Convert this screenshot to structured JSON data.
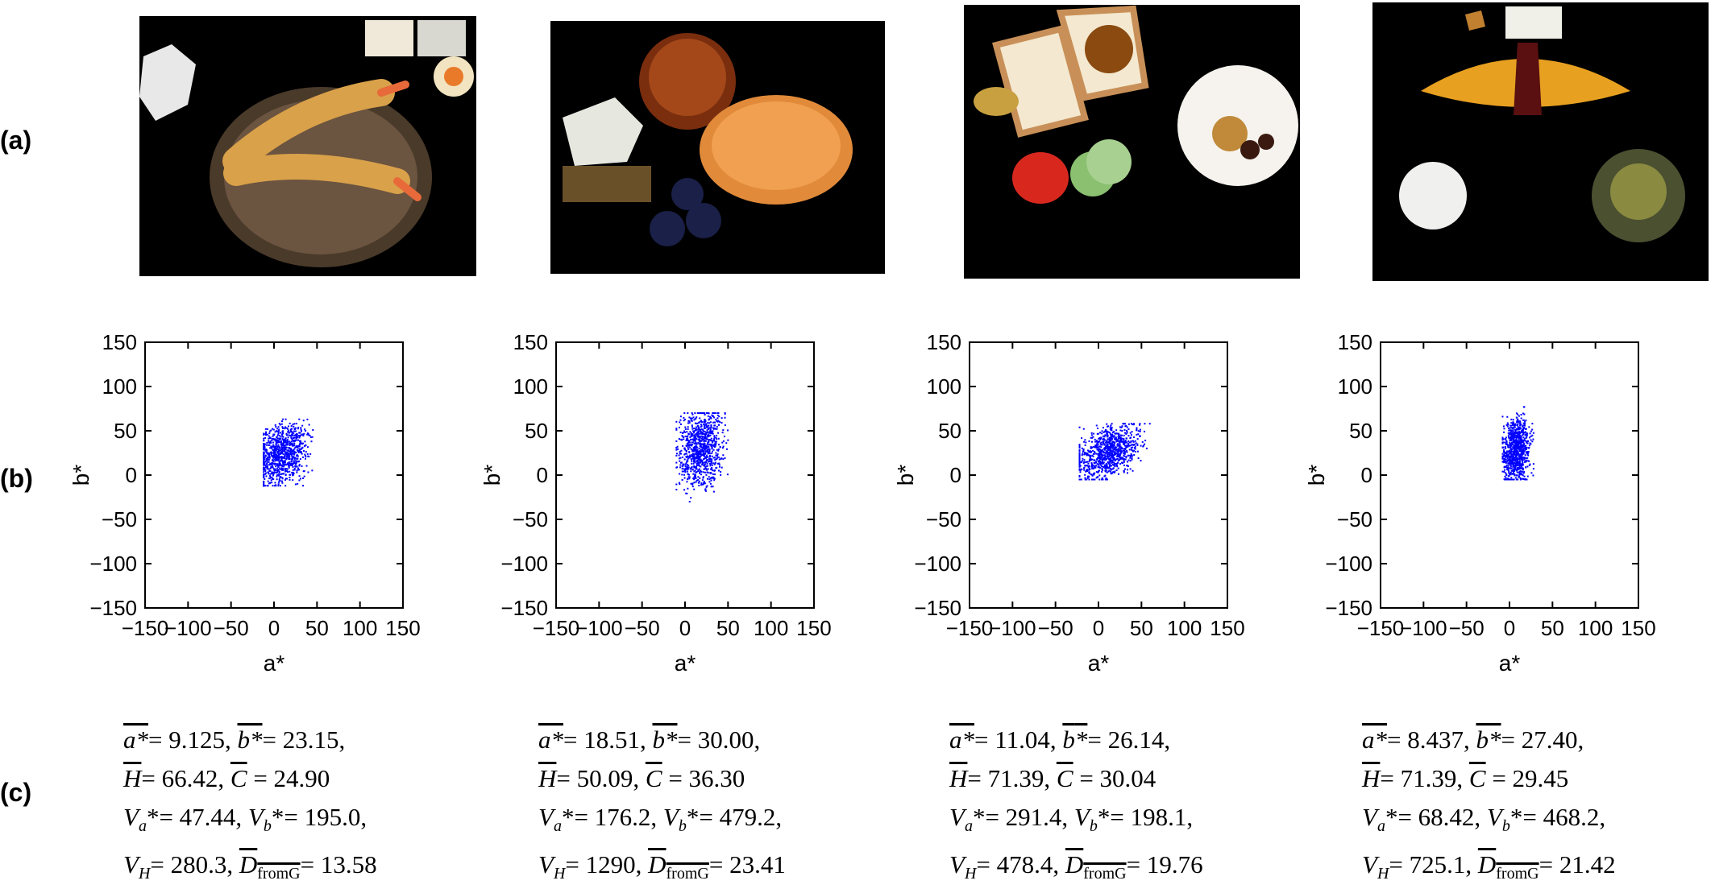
{
  "row_labels": {
    "a": "(a)",
    "b": "(b)",
    "c": "(c)"
  },
  "images": [
    {
      "icon": "tempura-soba-photo"
    },
    {
      "icon": "dessert-plate-photo"
    },
    {
      "icon": "toast-breakfast-photo"
    },
    {
      "icon": "omelette-rice-photo"
    }
  ],
  "chart_data": [
    {
      "type": "scatter",
      "xlabel": "a*",
      "ylabel": "b*",
      "xlim": [
        -150,
        150
      ],
      "ylim": [
        -150,
        150
      ],
      "xticks": [
        -150,
        -100,
        -50,
        0,
        50,
        100,
        150
      ],
      "yticks": [
        -150,
        -100,
        -50,
        0,
        50,
        100,
        150
      ],
      "grid": false,
      "color": "#0000ff",
      "cluster": {
        "x": [
          -12,
          55
        ],
        "y": [
          -12,
          63
        ],
        "cx": 8,
        "cy": 24
      }
    },
    {
      "type": "scatter",
      "xlabel": "a*",
      "ylabel": "b*",
      "xlim": [
        -150,
        150
      ],
      "ylim": [
        -150,
        150
      ],
      "xticks": [
        -150,
        -100,
        -50,
        0,
        50,
        100,
        150
      ],
      "yticks": [
        -150,
        -100,
        -50,
        0,
        50,
        100,
        150
      ],
      "grid": false,
      "color": "#0000ff",
      "cluster": {
        "x": [
          -10,
          50
        ],
        "y": [
          -30,
          70
        ],
        "cx": 18,
        "cy": 30
      }
    },
    {
      "type": "scatter",
      "xlabel": "a*",
      "ylabel": "b*",
      "xlim": [
        -150,
        150
      ],
      "ylim": [
        -150,
        150
      ],
      "xticks": [
        -150,
        -100,
        -50,
        0,
        50,
        100,
        150
      ],
      "yticks": [
        -150,
        -100,
        -50,
        0,
        50,
        100,
        150
      ],
      "grid": false,
      "color": "#0000ff",
      "cluster": {
        "x": [
          -22,
          62
        ],
        "y": [
          -5,
          58
        ],
        "cx": 11,
        "cy": 26
      }
    },
    {
      "type": "scatter",
      "xlabel": "a*",
      "ylabel": "b*",
      "xlim": [
        -150,
        150
      ],
      "ylim": [
        -150,
        150
      ],
      "xticks": [
        -150,
        -100,
        -50,
        0,
        50,
        100,
        150
      ],
      "yticks": [
        -150,
        -100,
        -50,
        0,
        50,
        100,
        150
      ],
      "grid": false,
      "color": "#0000ff",
      "cluster": {
        "x": [
          -8,
          28
        ],
        "y": [
          -5,
          77
        ],
        "cx": 8,
        "cy": 27
      }
    }
  ],
  "stats": [
    {
      "a_mean": "9.125",
      "b_mean": "23.15",
      "H_mean": "66.42",
      "C_mean": "24.90",
      "Va": "47.44",
      "Vb": "195.0",
      "VH": "280.3",
      "D_fromG": "13.58"
    },
    {
      "a_mean": "18.51",
      "b_mean": "30.00",
      "H_mean": "50.09",
      "C_mean": "36.30",
      "Va": "176.2",
      "Vb": "479.2",
      "VH": "1290",
      "D_fromG": "23.41"
    },
    {
      "a_mean": "11.04",
      "b_mean": "26.14",
      "H_mean": "71.39",
      "C_mean": "30.04",
      "Va": "291.4",
      "Vb": "198.1",
      "VH": "478.4",
      "D_fromG": "19.76"
    },
    {
      "a_mean": "8.437",
      "b_mean": "27.40",
      "H_mean": "71.39",
      "C_mean": "29.45",
      "Va": "68.42",
      "Vb": "468.2",
      "VH": "725.1",
      "D_fromG": "21.42"
    }
  ],
  "symbols": {
    "a": "a",
    "star": "*",
    "b": "b",
    "H": "H",
    "C": "C",
    "V": "V",
    "sub_H": "H",
    "sub_a": "a",
    "sub_b": "b",
    "D": "D",
    "sub_D": "fromG",
    "eq": "= ",
    "sep": ", "
  }
}
